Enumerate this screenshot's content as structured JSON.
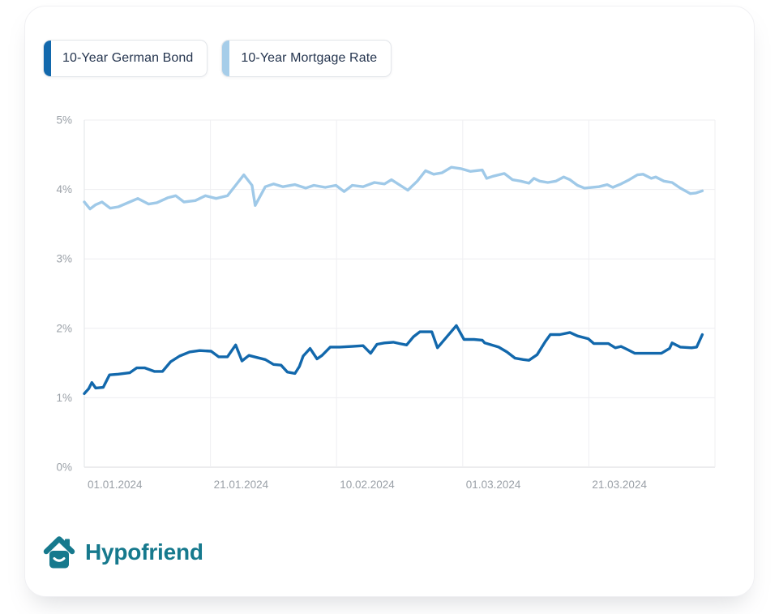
{
  "legend": {
    "items": [
      {
        "label": "10-Year German Bond",
        "color": "#1268ac"
      },
      {
        "label": "10-Year Mortgage Rate",
        "color": "#a6cde9"
      }
    ]
  },
  "brand": {
    "name": "Hypofriend",
    "color": "#16798d"
  },
  "chart_data": {
    "type": "line",
    "title": "",
    "xlabel": "",
    "ylabel": "",
    "grid": true,
    "legend_position": "top-left",
    "x_axis": {
      "tick_labels": [
        "01.01.2024",
        "21.01.2024",
        "10.02.2024",
        "01.03.2024",
        "21.03.2024"
      ],
      "tick_days": [
        0,
        20,
        40,
        60,
        80
      ],
      "days_per_grid": 20,
      "domain_days": [
        0,
        100
      ]
    },
    "y_axis": {
      "tick_labels": [
        "0%",
        "1%",
        "2%",
        "3%",
        "4%",
        "5%"
      ],
      "min": 0,
      "max": 5,
      "unit": "%"
    },
    "series": [
      {
        "name": "10-Year Mortgage Rate",
        "color": "#9fc9e8",
        "points": [
          [
            0,
            3.82
          ],
          [
            0.9,
            3.72
          ],
          [
            1.8,
            3.78
          ],
          [
            2.8,
            3.82
          ],
          [
            4.1,
            3.73
          ],
          [
            5.4,
            3.75
          ],
          [
            7.2,
            3.82
          ],
          [
            8.5,
            3.87
          ],
          [
            10.2,
            3.79
          ],
          [
            11.5,
            3.81
          ],
          [
            13.2,
            3.88
          ],
          [
            14.5,
            3.91
          ],
          [
            15.8,
            3.82
          ],
          [
            17.6,
            3.84
          ],
          [
            19.2,
            3.91
          ],
          [
            20.9,
            3.87
          ],
          [
            22.7,
            3.91
          ],
          [
            24,
            4.06
          ],
          [
            25.3,
            4.21
          ],
          [
            26.6,
            4.06
          ],
          [
            27.1,
            3.77
          ],
          [
            28.7,
            4.04
          ],
          [
            30,
            4.08
          ],
          [
            31.5,
            4.04
          ],
          [
            33.4,
            4.07
          ],
          [
            35.1,
            4.02
          ],
          [
            36.4,
            4.06
          ],
          [
            38.2,
            4.03
          ],
          [
            39.9,
            4.06
          ],
          [
            41.2,
            3.97
          ],
          [
            42.5,
            4.06
          ],
          [
            44.2,
            4.04
          ],
          [
            46,
            4.1
          ],
          [
            47.6,
            4.08
          ],
          [
            48.7,
            4.14
          ],
          [
            51.3,
            3.99
          ],
          [
            52.8,
            4.12
          ],
          [
            54.1,
            4.27
          ],
          [
            55.4,
            4.22
          ],
          [
            56.7,
            4.24
          ],
          [
            58.2,
            4.32
          ],
          [
            59.7,
            4.3
          ],
          [
            61.2,
            4.26
          ],
          [
            63.1,
            4.28
          ],
          [
            63.8,
            4.16
          ],
          [
            64.8,
            4.19
          ],
          [
            66.6,
            4.23
          ],
          [
            67.9,
            4.14
          ],
          [
            69.2,
            4.12
          ],
          [
            70.5,
            4.09
          ],
          [
            71.3,
            4.16
          ],
          [
            72.2,
            4.12
          ],
          [
            73.5,
            4.1
          ],
          [
            74.8,
            4.12
          ],
          [
            76,
            4.18
          ],
          [
            77,
            4.14
          ],
          [
            78.2,
            4.06
          ],
          [
            79.3,
            4.02
          ],
          [
            81.6,
            4.04
          ],
          [
            82.9,
            4.07
          ],
          [
            83.8,
            4.03
          ],
          [
            85.1,
            4.08
          ],
          [
            86.4,
            4.14
          ],
          [
            87.7,
            4.21
          ],
          [
            88.6,
            4.22
          ],
          [
            89.9,
            4.16
          ],
          [
            90.6,
            4.18
          ],
          [
            91.9,
            4.12
          ],
          [
            93.2,
            4.1
          ],
          [
            94.5,
            4.02
          ],
          [
            96.1,
            3.94
          ],
          [
            97,
            3.95
          ],
          [
            98,
            3.98
          ]
        ]
      },
      {
        "name": "10-Year German Bond",
        "color": "#1268ac",
        "points": [
          [
            0,
            1.06
          ],
          [
            0.7,
            1.13
          ],
          [
            1.2,
            1.22
          ],
          [
            1.8,
            1.14
          ],
          [
            3,
            1.15
          ],
          [
            4,
            1.33
          ],
          [
            5.4,
            1.34
          ],
          [
            7.2,
            1.36
          ],
          [
            8.3,
            1.43
          ],
          [
            9.6,
            1.43
          ],
          [
            11.1,
            1.38
          ],
          [
            12.4,
            1.38
          ],
          [
            13.7,
            1.52
          ],
          [
            15.1,
            1.6
          ],
          [
            16.7,
            1.66
          ],
          [
            18.3,
            1.68
          ],
          [
            20.1,
            1.67
          ],
          [
            21.3,
            1.59
          ],
          [
            22.7,
            1.59
          ],
          [
            24,
            1.76
          ],
          [
            25,
            1.53
          ],
          [
            26.1,
            1.61
          ],
          [
            27.4,
            1.58
          ],
          [
            28.7,
            1.55
          ],
          [
            30,
            1.48
          ],
          [
            31.2,
            1.47
          ],
          [
            32.2,
            1.37
          ],
          [
            33.4,
            1.35
          ],
          [
            34.1,
            1.45
          ],
          [
            34.7,
            1.6
          ],
          [
            35.8,
            1.71
          ],
          [
            36.9,
            1.56
          ],
          [
            37.7,
            1.61
          ],
          [
            39,
            1.73
          ],
          [
            40.5,
            1.73
          ],
          [
            42.5,
            1.74
          ],
          [
            44.2,
            1.75
          ],
          [
            45.4,
            1.64
          ],
          [
            46.4,
            1.77
          ],
          [
            47.6,
            1.79
          ],
          [
            49,
            1.8
          ],
          [
            50,
            1.78
          ],
          [
            51.1,
            1.76
          ],
          [
            52.2,
            1.88
          ],
          [
            53.2,
            1.95
          ],
          [
            55.1,
            1.95
          ],
          [
            56,
            1.72
          ],
          [
            57.6,
            1.89
          ],
          [
            59,
            2.04
          ],
          [
            60.2,
            1.84
          ],
          [
            61.8,
            1.84
          ],
          [
            63.1,
            1.83
          ],
          [
            63.5,
            1.79
          ],
          [
            65.7,
            1.73
          ],
          [
            67,
            1.66
          ],
          [
            68.3,
            1.57
          ],
          [
            69.6,
            1.55
          ],
          [
            70.5,
            1.54
          ],
          [
            71.8,
            1.62
          ],
          [
            73.1,
            1.81
          ],
          [
            73.9,
            1.91
          ],
          [
            75.4,
            1.91
          ],
          [
            77,
            1.94
          ],
          [
            78.2,
            1.89
          ],
          [
            79.9,
            1.85
          ],
          [
            80.8,
            1.78
          ],
          [
            83.1,
            1.78
          ],
          [
            84.2,
            1.72
          ],
          [
            85.1,
            1.74
          ],
          [
            86,
            1.7
          ],
          [
            87.3,
            1.64
          ],
          [
            90.2,
            1.64
          ],
          [
            91.5,
            1.64
          ],
          [
            92.8,
            1.71
          ],
          [
            93.2,
            1.79
          ],
          [
            94.5,
            1.73
          ],
          [
            96.3,
            1.72
          ],
          [
            97.1,
            1.73
          ],
          [
            98,
            1.91
          ]
        ]
      }
    ]
  }
}
